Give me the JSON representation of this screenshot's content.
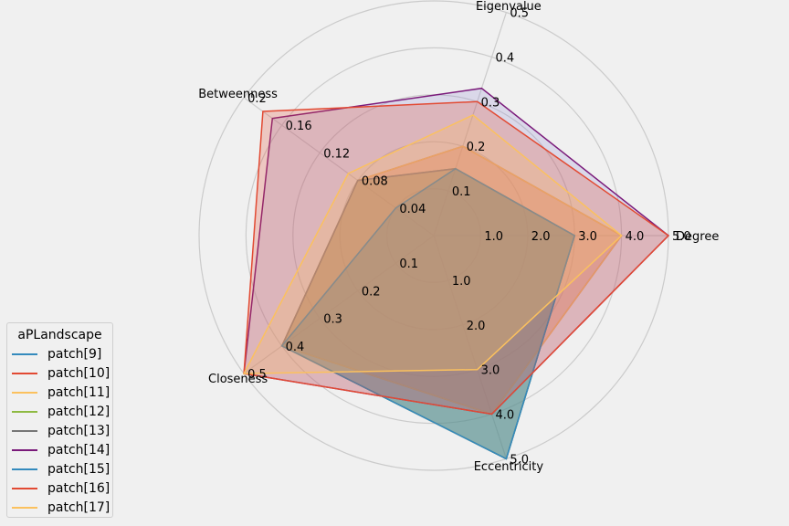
{
  "chart_data": {
    "type": "radar",
    "axes": [
      {
        "name": "Degree",
        "max": 5.0,
        "ticks": [
          "1.0",
          "2.0",
          "3.0",
          "4.0",
          "5.0"
        ],
        "tick_values": [
          1,
          2,
          3,
          4,
          5
        ]
      },
      {
        "name": "Eigenvalue",
        "max": 0.5,
        "ticks": [
          "0.1",
          "0.2",
          "0.3",
          "0.4",
          "0.5"
        ],
        "tick_values": [
          0.1,
          0.2,
          0.3,
          0.4,
          0.5
        ]
      },
      {
        "name": "Betweenness",
        "max": 0.2,
        "ticks": [
          "0.04",
          "0.08",
          "0.12",
          "0.16",
          "0.2"
        ],
        "tick_values": [
          0.04,
          0.08,
          0.12,
          0.16,
          0.2
        ]
      },
      {
        "name": "Closeness",
        "max": 0.5,
        "ticks": [
          "0.1",
          "0.2",
          "0.3",
          "0.4",
          "0.5"
        ],
        "tick_values": [
          0.1,
          0.2,
          0.3,
          0.4,
          0.5
        ]
      },
      {
        "name": "Eccentricity",
        "max": 5.0,
        "ticks": [
          "1.0",
          "2.0",
          "3.0",
          "4.0",
          "5.0"
        ],
        "tick_values": [
          1,
          2,
          3,
          4,
          5
        ]
      }
    ],
    "series": [
      {
        "name": "patch[9]",
        "color": "#348ABD",
        "values": [
          3.0,
          0.15,
          0.04,
          0.4,
          5.0
        ]
      },
      {
        "name": "patch[10]",
        "color": "#E24A33",
        "values": [
          4.0,
          0.2,
          0.08,
          0.4,
          4.0
        ]
      },
      {
        "name": "patch[11]",
        "color": "#FBC15E",
        "values": [
          4.0,
          0.2,
          0.08,
          0.4,
          4.0
        ]
      },
      {
        "name": "patch[12]",
        "color": "#8EBA42",
        "values": [
          3.0,
          0.15,
          0.08,
          0.4,
          5.0
        ]
      },
      {
        "name": "patch[13]",
        "color": "#777777",
        "values": [
          3.0,
          0.15,
          0.08,
          0.4,
          5.0
        ]
      },
      {
        "name": "patch[14]",
        "color": "#988ED5",
        "line_color": "#7a1a7a",
        "values": [
          5.0,
          0.33,
          0.17,
          0.5,
          4.0
        ]
      },
      {
        "name": "patch[15]",
        "color": "#348ABD",
        "values": [
          3.0,
          0.15,
          0.04,
          0.4,
          5.0
        ]
      },
      {
        "name": "patch[16]",
        "color": "#E24A33",
        "values": [
          5.0,
          0.3,
          0.18,
          0.5,
          4.0
        ]
      },
      {
        "name": "patch[17]",
        "color": "#FBC15E",
        "values": [
          4.0,
          0.27,
          0.09,
          0.5,
          3.0
        ]
      }
    ],
    "legend": {
      "title": "aPLandscape",
      "placement": "lower-left"
    },
    "grid": true
  }
}
